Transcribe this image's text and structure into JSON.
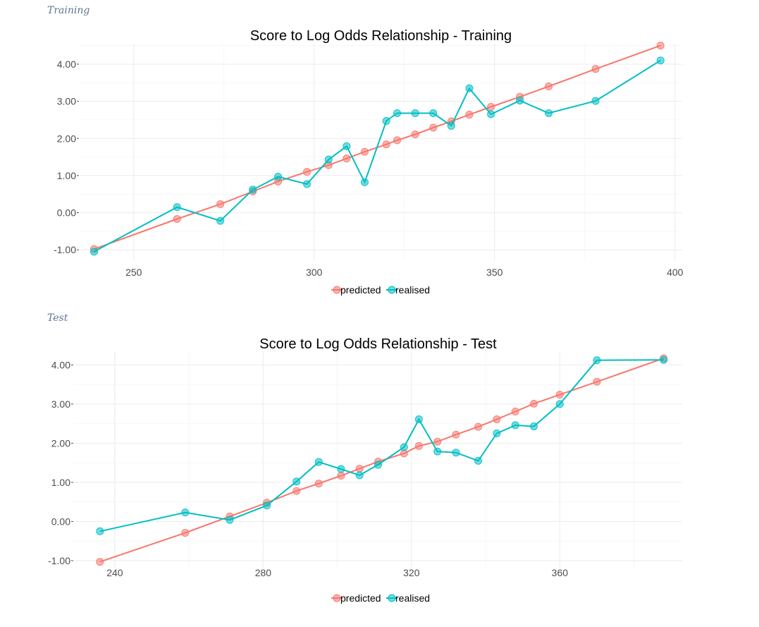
{
  "sections": [
    {
      "label": "Training"
    },
    {
      "label": "Test"
    }
  ],
  "colors": {
    "predicted": "#F8766D",
    "realised": "#00BFC4"
  },
  "chart_data": [
    {
      "type": "line",
      "title": "Score to Log Odds Relationship - Training",
      "xlabel": "",
      "ylabel": "",
      "xlim": [
        235,
        402
      ],
      "ylim": [
        -1.3,
        4.55
      ],
      "xticks": [
        250,
        300,
        350,
        400
      ],
      "yticks": [
        -1,
        0,
        1,
        2,
        3,
        4
      ],
      "ytick_labels": [
        "-1.00",
        "0.00",
        "1.00",
        "2.00",
        "3.00",
        "4.00"
      ],
      "grid": true,
      "legend": {
        "position": "bottom",
        "entries": [
          "predicted",
          "realised"
        ]
      },
      "series": [
        {
          "name": "predicted",
          "x": [
            239,
            262,
            274,
            283,
            290,
            298,
            304,
            309,
            314,
            320,
            323,
            328,
            333,
            338,
            343,
            349,
            357,
            365,
            378,
            396
          ],
          "y": [
            -0.98,
            -0.17,
            0.23,
            0.57,
            0.84,
            1.1,
            1.28,
            1.46,
            1.64,
            1.84,
            1.95,
            2.11,
            2.29,
            2.46,
            2.64,
            2.85,
            3.12,
            3.4,
            3.87,
            4.5
          ]
        },
        {
          "name": "realised",
          "x": [
            239,
            262,
            274,
            283,
            290,
            298,
            304,
            309,
            314,
            320,
            323,
            328,
            333,
            338,
            343,
            349,
            357,
            365,
            378,
            396
          ],
          "y": [
            -1.05,
            0.15,
            -0.22,
            0.62,
            0.97,
            0.77,
            1.43,
            1.79,
            0.82,
            2.47,
            2.68,
            2.68,
            2.68,
            2.34,
            3.35,
            2.65,
            3.02,
            2.68,
            3.01,
            4.1
          ]
        }
      ]
    },
    {
      "type": "line",
      "title": "Score to Log Odds Relationship - Test",
      "xlabel": "",
      "ylabel": "",
      "xlim": [
        229,
        393
      ],
      "ylim": [
        -1.2,
        4.35
      ],
      "xticks": [
        240,
        280,
        320,
        360
      ],
      "yticks": [
        -1,
        0,
        1,
        2,
        3,
        4
      ],
      "ytick_labels": [
        "-1.00",
        "0.00",
        "1.00",
        "2.00",
        "3.00",
        "4.00"
      ],
      "grid": true,
      "legend": {
        "position": "bottom",
        "entries": [
          "predicted",
          "realised"
        ]
      },
      "series": [
        {
          "name": "predicted",
          "x": [
            236,
            259,
            271,
            281,
            289,
            295,
            301,
            306,
            311,
            318,
            322,
            327,
            332,
            338,
            343,
            348,
            353,
            360,
            370,
            388
          ],
          "y": [
            -1.03,
            -0.29,
            0.13,
            0.48,
            0.78,
            0.97,
            1.17,
            1.35,
            1.53,
            1.74,
            1.93,
            2.04,
            2.22,
            2.42,
            2.61,
            2.81,
            3.01,
            3.24,
            3.57,
            4.17
          ]
        },
        {
          "name": "realised",
          "x": [
            236,
            259,
            271,
            281,
            289,
            295,
            301,
            306,
            311,
            318,
            322,
            327,
            332,
            338,
            343,
            348,
            353,
            360,
            370,
            388
          ],
          "y": [
            -0.25,
            0.23,
            0.04,
            0.41,
            1.02,
            1.52,
            1.34,
            1.18,
            1.45,
            1.9,
            2.61,
            1.79,
            1.76,
            1.55,
            2.25,
            2.46,
            2.43,
            3.0,
            4.12,
            4.13
          ]
        }
      ]
    }
  ]
}
